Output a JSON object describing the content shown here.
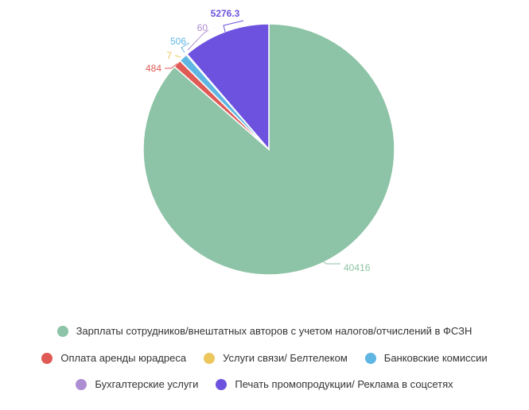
{
  "chart_data": {
    "type": "pie",
    "title": "",
    "slices": [
      {
        "label": "Зарплаты сотрудников/внештатных авторов с учетом налогов/отчислений в ФСЗН",
        "value": 40416,
        "value_label": "40416",
        "color": "#8dc3a6"
      },
      {
        "label": "Оплата аренды юрадреса",
        "value": 484,
        "value_label": "484",
        "color": "#e05a55"
      },
      {
        "label": "Услуги связи/ Белтелеком",
        "value": 7,
        "value_label": "7",
        "color": "#ecc75e"
      },
      {
        "label": "Банковские комиссии",
        "value": 506,
        "value_label": "506",
        "color": "#5fb6e3"
      },
      {
        "label": "Бухгалтерские услуги",
        "value": 60,
        "value_label": "60",
        "color": "#ad8ed3"
      },
      {
        "label": "Печать промопродукции/ Реклама в соцсетях",
        "value": 5276.3,
        "value_label": "5276.3",
        "color": "#6c52de"
      }
    ],
    "legend_position": "bottom"
  }
}
